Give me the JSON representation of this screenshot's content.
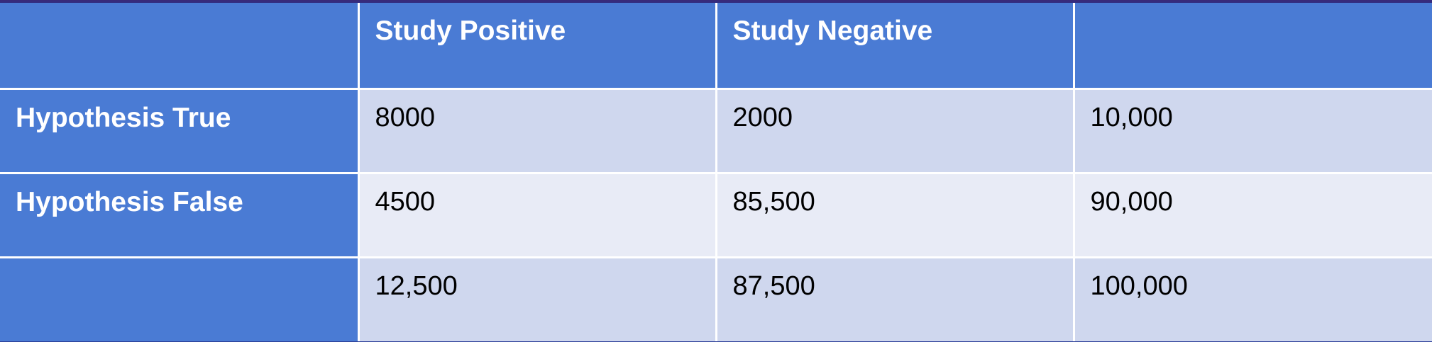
{
  "table": {
    "headers": [
      "",
      "Study Positive",
      "Study Negative",
      ""
    ],
    "rows": [
      {
        "label": "Hypothesis True",
        "cells": [
          "8000",
          "2000",
          "10,000"
        ]
      },
      {
        "label": "Hypothesis False",
        "cells": [
          "4500",
          "85,500",
          "90,000"
        ]
      },
      {
        "label": "",
        "cells": [
          "12,500",
          "87,500",
          "100,000"
        ]
      }
    ]
  },
  "colors": {
    "header_bg": "#4a7bd4",
    "row_odd_bg": "#cfd7ee",
    "row_even_bg": "#e8ebf6",
    "border": "#ffffff"
  }
}
